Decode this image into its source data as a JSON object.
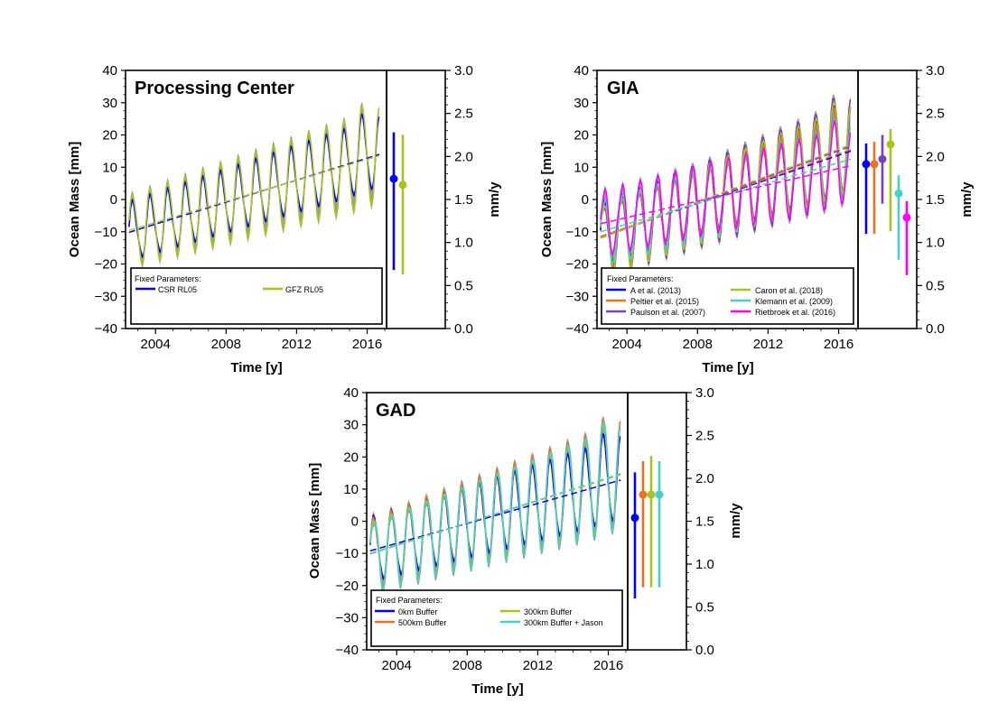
{
  "colors": {
    "blue": "#0000ff",
    "olive": "#a6c61e",
    "orange": "#f07022",
    "purple": "#7b3fbf",
    "cyan": "#44d1c9",
    "magenta": "#ff00ff",
    "gray_fill": "#9a9a9a"
  },
  "chart_data": [
    {
      "type": "line",
      "panel_title": "Processing Center",
      "xlabel": "Time [y]",
      "ylabel": "Ocean Mass [mm]",
      "y2label": "mm/y",
      "xlim": [
        2002.3,
        2017.1
      ],
      "ylim": [
        -40,
        40
      ],
      "y2lim": [
        0.0,
        3.0
      ],
      "xticks": [
        "2004",
        "2008",
        "2012",
        "2016"
      ],
      "yticks": [
        "40",
        "30",
        "20",
        "10",
        "0",
        "−10",
        "−20",
        "−30",
        "−40"
      ],
      "y2ticks": [
        "3.0",
        "2.5",
        "2.0",
        "1.5",
        "1.0",
        "0.5",
        "0.0"
      ],
      "legend_title": "Fixed Parameters:",
      "legend_placement": "bottom",
      "legend_entries": [
        "CSR RL05",
        "GFZ RL05"
      ],
      "series": [
        {
          "name": "CSR RL05",
          "color": "#0000ff",
          "trend_start": -10.2,
          "trend_end": 14.0,
          "amp_start": 9,
          "amp_end": 11,
          "rate": 1.74,
          "err_low": 0.68,
          "err_high": 2.28
        },
        {
          "name": "GFZ RL05",
          "color": "#a6c61e",
          "trend_start": -9.6,
          "trend_end": 13.6,
          "amp_start": 11,
          "amp_end": 15,
          "rate": 1.67,
          "err_low": 0.63,
          "err_high": 2.25
        }
      ]
    },
    {
      "type": "line",
      "panel_title": "GIA",
      "xlabel": "Time [y]",
      "ylabel": "Ocean Mass [mm]",
      "y2label": "mm/y",
      "xlim": [
        2002.3,
        2017.1
      ],
      "ylim": [
        -40,
        40
      ],
      "y2lim": [
        0.0,
        3.0
      ],
      "xticks": [
        "2004",
        "2008",
        "2012",
        "2016"
      ],
      "yticks": [
        "40",
        "30",
        "20",
        "10",
        "0",
        "−10",
        "−20",
        "−30",
        "−40"
      ],
      "y2ticks": [
        "3.0",
        "2.5",
        "2.0",
        "1.5",
        "1.0",
        "0.5",
        "0.0"
      ],
      "legend_title": "Fixed Parameters:",
      "legend_placement": "bottom",
      "legend_entries": [
        "A et al. (2013)",
        "Peltier et al. (2015)",
        "Paulson et al. (2007)",
        "Caron et al. (2018)",
        "Klemann et al. (2009)",
        "Rietbroek et al. (2016)"
      ],
      "series": [
        {
          "name": "A et al. (2013)",
          "color": "#0000ff",
          "trend_start": -11.5,
          "trend_end": 15.0,
          "amp_start": 10,
          "amp_end": 13,
          "rate": 1.91,
          "err_low": 1.1,
          "err_high": 2.15
        },
        {
          "name": "Peltier et al. (2015)",
          "color": "#f07022",
          "trend_start": -11.5,
          "trend_end": 15.5,
          "amp_start": 10,
          "amp_end": 13,
          "rate": 1.91,
          "err_low": 1.1,
          "err_high": 2.17
        },
        {
          "name": "Paulson et al. (2007)",
          "color": "#7b3fbf",
          "trend_start": -12.0,
          "trend_end": 16.5,
          "amp_start": 11,
          "amp_end": 16,
          "rate": 1.97,
          "err_low": 1.45,
          "err_high": 2.25
        },
        {
          "name": "Caron et al. (2018)",
          "color": "#a6c61e",
          "trend_start": -12.0,
          "trend_end": 17.0,
          "amp_start": 11,
          "amp_end": 14,
          "rate": 2.14,
          "err_low": 1.13,
          "err_high": 2.32
        },
        {
          "name": "Klemann et al. (2009)",
          "color": "#44d1c9",
          "trend_start": -10.0,
          "trend_end": 12.5,
          "amp_start": 10,
          "amp_end": 12,
          "rate": 1.57,
          "err_low": 0.8,
          "err_high": 1.78
        },
        {
          "name": "Rietbroek et al. (2016)",
          "color": "#ff00ff",
          "trend_start": -7.5,
          "trend_end": 10.5,
          "amp_start": 10,
          "amp_end": 12,
          "rate": 1.29,
          "err_low": 0.62,
          "err_high": 1.48
        }
      ]
    },
    {
      "type": "line",
      "panel_title": "GAD",
      "xlabel": "Time [y]",
      "ylabel": "Ocean Mass [mm]",
      "y2label": "mm/y",
      "xlim": [
        2002.3,
        2017.1
      ],
      "ylim": [
        -40,
        40
      ],
      "y2lim": [
        0.0,
        3.0
      ],
      "xticks": [
        "2004",
        "2008",
        "2012",
        "2016"
      ],
      "yticks": [
        "40",
        "30",
        "20",
        "10",
        "0",
        "−10",
        "−20",
        "−30",
        "−40"
      ],
      "y2ticks": [
        "3.0",
        "2.5",
        "2.0",
        "1.5",
        "1.0",
        "0.5",
        "0.0"
      ],
      "legend_title": "Fixed Parameters:",
      "legend_placement": "bottom",
      "legend_entries": [
        "0km Buffer",
        "500km Buffer",
        "300km Buffer",
        "300km Buffer + Jason"
      ],
      "series": [
        {
          "name": "0km Buffer",
          "color": "#0000ff",
          "trend_start": -9.2,
          "trend_end": 12.8,
          "amp_start": 10,
          "amp_end": 13,
          "rate": 1.54,
          "err_low": 0.6,
          "err_high": 2.07
        },
        {
          "name": "500km Buffer",
          "color": "#f07022",
          "trend_start": -10.0,
          "trend_end": 14.5,
          "amp_start": 11,
          "amp_end": 17,
          "rate": 1.81,
          "err_low": 0.73,
          "err_high": 2.2
        },
        {
          "name": "300km Buffer",
          "color": "#a6c61e",
          "trend_start": -10.0,
          "trend_end": 14.5,
          "amp_start": 11,
          "amp_end": 16,
          "rate": 1.81,
          "err_low": 0.73,
          "err_high": 2.26
        },
        {
          "name": "300km Buffer + Jason",
          "color": "#44d1c9",
          "trend_start": -10.2,
          "trend_end": 14.8,
          "amp_start": 11,
          "amp_end": 17,
          "rate": 1.81,
          "err_low": 0.73,
          "err_high": 2.2
        }
      ]
    }
  ]
}
